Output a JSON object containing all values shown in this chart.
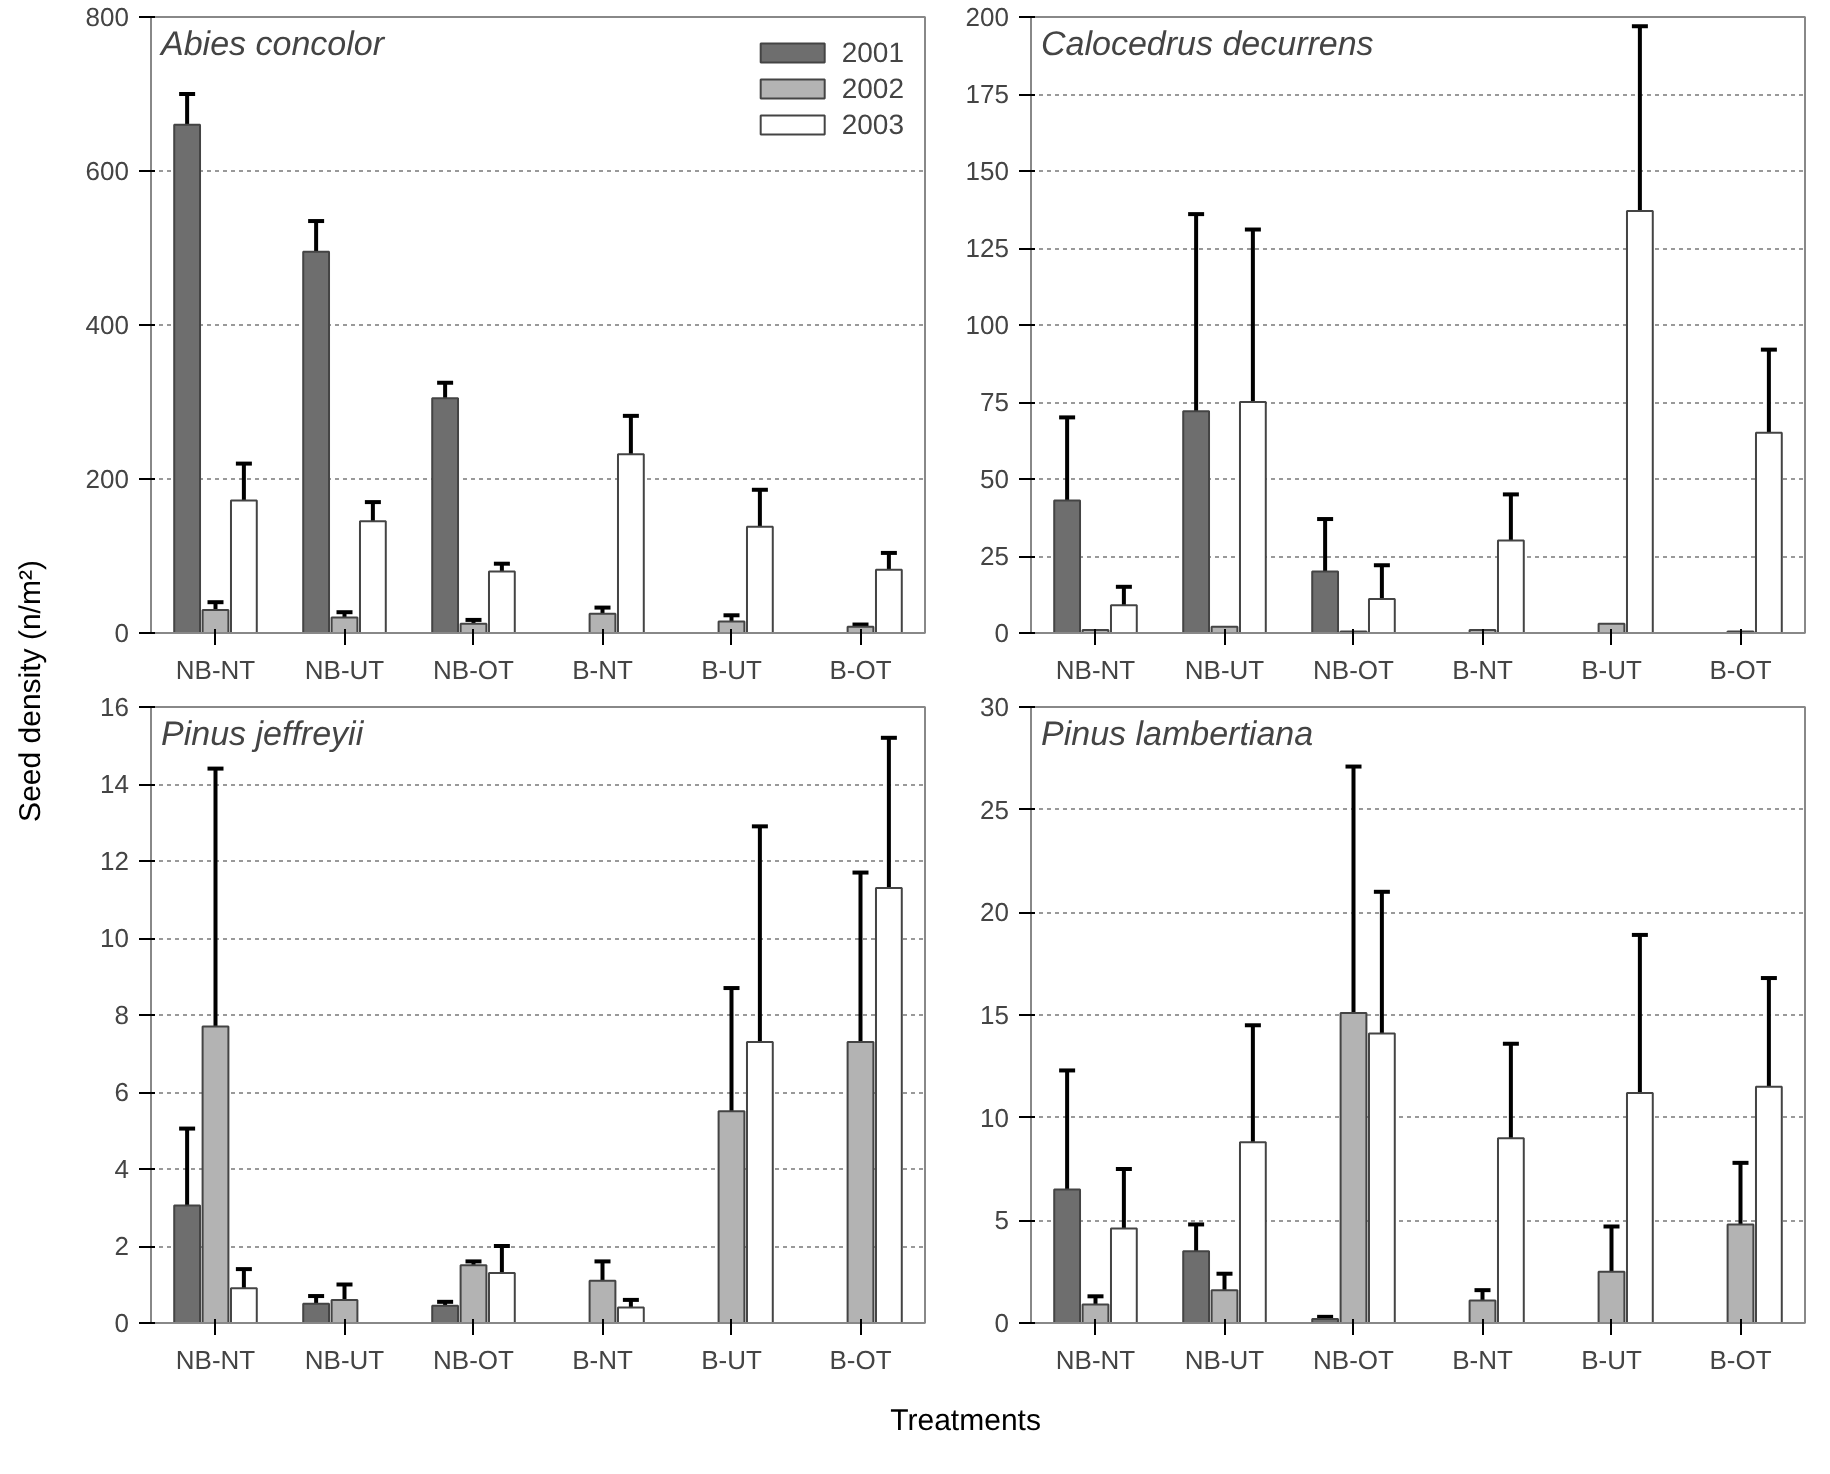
{
  "chart_data": [
    {
      "type": "bar",
      "title": "Abies concolor",
      "ylabel": "Seed density (n/m²)",
      "xlabel": "Treatments",
      "categories": [
        "NB-NT",
        "NB-UT",
        "NB-OT",
        "B-NT",
        "B-UT",
        "B-OT"
      ],
      "ylim": [
        0,
        800
      ],
      "yticks": [
        0,
        200,
        400,
        600,
        800
      ],
      "grid": "y",
      "legend": "top right",
      "series": [
        {
          "name": "2001",
          "color": "#6e6e6e",
          "values": [
            660,
            495,
            305,
            null,
            null,
            null
          ],
          "errors": [
            40,
            40,
            20,
            null,
            null,
            null
          ]
        },
        {
          "name": "2002",
          "color": "#b3b3b3",
          "values": [
            30,
            20,
            12,
            25,
            15,
            8
          ],
          "errors": [
            10,
            7,
            5,
            8,
            8,
            3
          ]
        },
        {
          "name": "2003",
          "color": "#ffffff",
          "values": [
            172,
            145,
            80,
            232,
            138,
            82
          ],
          "errors": [
            48,
            25,
            10,
            50,
            48,
            22
          ]
        }
      ]
    },
    {
      "type": "bar",
      "title": "Calocedrus decurrens",
      "categories": [
        "NB-NT",
        "NB-UT",
        "NB-OT",
        "B-NT",
        "B-UT",
        "B-OT"
      ],
      "ylim": [
        0,
        200
      ],
      "yticks": [
        0,
        25,
        50,
        75,
        100,
        125,
        150,
        175,
        200
      ],
      "grid": "y",
      "series": [
        {
          "color": "#6e6e6e",
          "values": [
            43,
            72,
            20,
            null,
            null,
            null
          ],
          "errors": [
            27,
            64,
            17,
            null,
            null,
            null
          ]
        },
        {
          "color": "#b3b3b3",
          "values": [
            1,
            2,
            0.5,
            1,
            3,
            0.5
          ],
          "errors": [
            null,
            null,
            null,
            null,
            null,
            null
          ]
        },
        {
          "color": "#ffffff",
          "values": [
            9,
            75,
            11,
            30,
            137,
            65
          ],
          "errors": [
            6,
            56,
            11,
            15,
            60,
            27
          ]
        }
      ]
    },
    {
      "type": "bar",
      "title": "Pinus jeffreyii",
      "categories": [
        "NB-NT",
        "NB-UT",
        "NB-OT",
        "B-NT",
        "B-UT",
        "B-OT"
      ],
      "ylim": [
        0,
        16
      ],
      "yticks": [
        0,
        2,
        4,
        6,
        8,
        10,
        12,
        14,
        16
      ],
      "grid": "y",
      "series": [
        {
          "color": "#6e6e6e",
          "values": [
            3.05,
            0.5,
            0.45,
            null,
            null,
            null
          ],
          "errors": [
            2,
            0.2,
            0.1,
            null,
            null,
            null
          ]
        },
        {
          "color": "#b3b3b3",
          "values": [
            7.7,
            0.6,
            1.5,
            1.1,
            5.5,
            7.3
          ],
          "errors": [
            6.7,
            0.4,
            0.1,
            0.5,
            3.2,
            4.4
          ]
        },
        {
          "color": "#ffffff",
          "values": [
            0.9,
            null,
            1.3,
            0.4,
            7.3,
            11.3
          ],
          "errors": [
            0.5,
            null,
            0.7,
            0.2,
            5.6,
            3.9
          ]
        }
      ]
    },
    {
      "type": "bar",
      "title": "Pinus lambertiana",
      "categories": [
        "NB-NT",
        "NB-UT",
        "NB-OT",
        "B-NT",
        "B-UT",
        "B-OT"
      ],
      "ylim": [
        0,
        30
      ],
      "yticks": [
        0,
        5,
        10,
        15,
        20,
        25,
        30
      ],
      "grid": "y",
      "series": [
        {
          "color": "#6e6e6e",
          "values": [
            6.5,
            3.5,
            0.2,
            null,
            null,
            null
          ],
          "errors": [
            5.8,
            1.3,
            0.1,
            null,
            null,
            null
          ]
        },
        {
          "color": "#b3b3b3",
          "values": [
            0.9,
            1.6,
            15.1,
            1.1,
            2.5,
            4.8
          ],
          "errors": [
            0.4,
            0.8,
            12,
            0.5,
            2.2,
            3
          ]
        },
        {
          "color": "#ffffff",
          "values": [
            4.6,
            8.8,
            14.1,
            9,
            11.2,
            11.5
          ],
          "errors": [
            2.9,
            5.7,
            6.9,
            4.6,
            7.7,
            5.3
          ]
        }
      ]
    }
  ]
}
